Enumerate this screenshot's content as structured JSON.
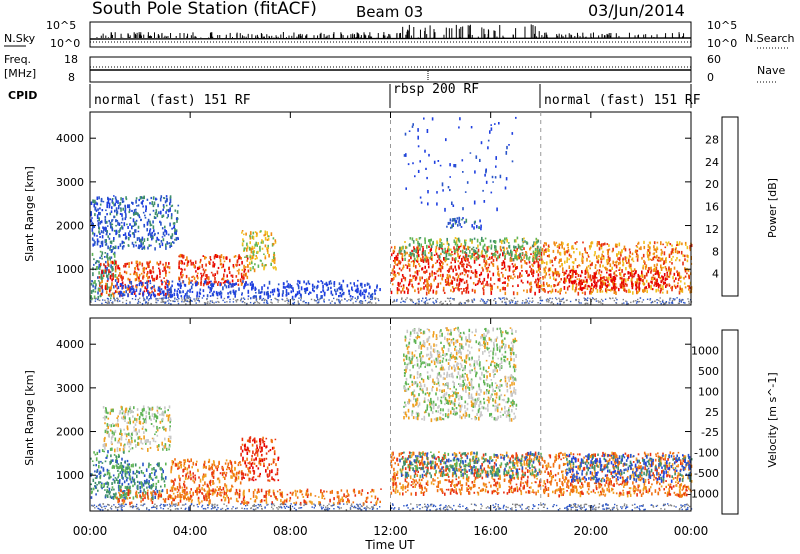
{
  "header": {
    "station": "South Pole Station (fitACF)",
    "beam": "Beam 03",
    "date": "03/Jun/2014"
  },
  "top_panel_labels": {
    "nsky": "N.Sky",
    "nsearch": "N.Search",
    "freq": "Freq.",
    "freq_unit": "[MHz]",
    "nave": "Nave",
    "cpid": "CPID",
    "nsky_ticks": [
      "10^5",
      "10^0"
    ],
    "nsearch_ticks": [
      "10^5",
      "10^0"
    ],
    "freq_ticks": [
      "18",
      "8"
    ],
    "nave_ticks": [
      "60",
      "0"
    ]
  },
  "cpid_segments": [
    {
      "label": "normal (fast) 151 RF",
      "start_hour": 0,
      "end_hour": 12
    },
    {
      "label": "rbsp 200 RF",
      "start_hour": 12,
      "end_hour": 18
    },
    {
      "label": "normal (fast) 151 RF",
      "start_hour": 18,
      "end_hour": 24
    }
  ],
  "x_axis": {
    "label": "Time UT",
    "ticks": [
      "00:00",
      "04:00",
      "08:00",
      "12:00",
      "16:00",
      "20:00",
      "00:00"
    ],
    "range_hours": [
      0,
      24
    ]
  },
  "y_axis": {
    "label": "Slant Range [km]",
    "ticks": [
      1000,
      2000,
      3000,
      4000
    ],
    "range_km": [
      180,
      4600
    ]
  },
  "chart_data": [
    {
      "type": "heatmap",
      "name": "power",
      "colorbar_label": "Power [dB]",
      "colorbar_ticks": [
        4,
        8,
        12,
        16,
        20,
        24,
        28
      ],
      "colorbar_range": [
        0,
        32
      ],
      "colors": [
        "#1f3fe0",
        "#2a55c8",
        "#3f8f6a",
        "#5fb455",
        "#f0c020",
        "#f08a10",
        "#e83010",
        "#e80000"
      ],
      "echo_regions": [
        {
          "t": [
            0.0,
            1.0
          ],
          "r": [
            350,
            1550
          ],
          "level": 2
        },
        {
          "t": [
            0.3,
            3.2
          ],
          "r": [
            420,
            1200
          ],
          "level": 6
        },
        {
          "t": [
            0.0,
            3.5
          ],
          "r": [
            1500,
            2700
          ],
          "level": 1
        },
        {
          "t": [
            3.5,
            6.3
          ],
          "r": [
            650,
            1350
          ],
          "level": 6
        },
        {
          "t": [
            6.0,
            7.4
          ],
          "r": [
            1000,
            1900
          ],
          "level": 4
        },
        {
          "t": [
            1.0,
            11.6
          ],
          "r": [
            380,
            760
          ],
          "level": 0
        },
        {
          "t": [
            12.0,
            18.0
          ],
          "r": [
            480,
            1550
          ],
          "level": 6
        },
        {
          "t": [
            12.3,
            18.0
          ],
          "r": [
            1250,
            1750
          ],
          "level": 3
        },
        {
          "t": [
            18.0,
            24.0
          ],
          "r": [
            480,
            1650
          ],
          "level": 5
        },
        {
          "t": [
            18.8,
            23.5
          ],
          "r": [
            560,
            1000
          ],
          "level": 7
        },
        {
          "t": [
            14.2,
            15.6
          ],
          "r": [
            1950,
            2200
          ],
          "level": 1
        },
        {
          "t": [
            12.5,
            17.0
          ],
          "r": [
            2400,
            4500
          ],
          "level": 0
        }
      ]
    },
    {
      "type": "heatmap",
      "name": "velocity",
      "colorbar_label": "Velocity [m s^-1]",
      "colorbar_ticks": [
        1000,
        500,
        100,
        25,
        -25,
        -100,
        -500,
        -1000
      ],
      "colorbar_range": [
        -1250,
        1250
      ],
      "colors": [
        "#1f3fe0",
        "#2a55c8",
        "#3f8f6a",
        "#5fb455",
        "#c8c8c8",
        "#f0a020",
        "#f07010",
        "#e83010",
        "#e80000"
      ],
      "echo_regions": [
        {
          "t": [
            0.0,
            1.6
          ],
          "r": [
            500,
            1600
          ],
          "level": 2
        },
        {
          "t": [
            1.0,
            3.0
          ],
          "r": [
            500,
            1300
          ],
          "level": 2
        },
        {
          "t": [
            0.5,
            3.2
          ],
          "r": [
            1600,
            2600
          ],
          "level": 4
        },
        {
          "t": [
            3.2,
            6.0
          ],
          "r": [
            600,
            1400
          ],
          "level": 6
        },
        {
          "t": [
            6.0,
            7.5
          ],
          "r": [
            900,
            1900
          ],
          "level": 7
        },
        {
          "t": [
            1.0,
            11.6
          ],
          "r": [
            380,
            700
          ],
          "level": 6
        },
        {
          "t": [
            12.0,
            18.0
          ],
          "r": [
            600,
            1550
          ],
          "level": 6
        },
        {
          "t": [
            12.3,
            18.0
          ],
          "r": [
            1000,
            1550
          ],
          "level": 2
        },
        {
          "t": [
            18.0,
            24.0
          ],
          "r": [
            550,
            1550
          ],
          "level": 6
        },
        {
          "t": [
            19.0,
            24.0
          ],
          "r": [
            900,
            1500
          ],
          "level": 1
        },
        {
          "t": [
            12.5,
            17.0
          ],
          "r": [
            2300,
            4400
          ],
          "level": 4
        }
      ]
    }
  ]
}
